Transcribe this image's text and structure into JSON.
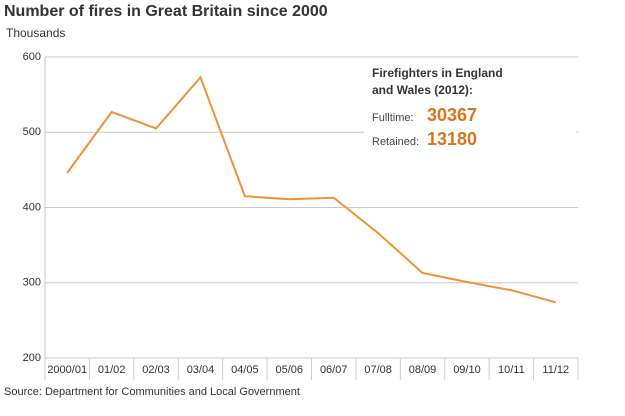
{
  "chart_data": {
    "type": "line",
    "title": "Number of fires in Great Britain since 2000",
    "subtitle": "Thousands",
    "categories": [
      "2000/01",
      "01/02",
      "02/03",
      "03/04",
      "04/05",
      "05/06",
      "06/07",
      "07/08",
      "08/09",
      "09/10",
      "10/11",
      "11/12"
    ],
    "values": [
      446,
      527,
      505,
      573,
      415,
      411,
      413,
      366,
      313,
      301,
      290,
      274
    ],
    "color": "#ef9235",
    "ylim": [
      200,
      600
    ],
    "yticks": [
      200,
      300,
      400,
      500,
      600
    ],
    "grid": true,
    "annotation": {
      "title": [
        "Firefighters in England",
        "and Wales (2012):"
      ],
      "rows": [
        {
          "label": "Fulltime:",
          "value": 30367
        },
        {
          "label": "Retained:",
          "value": 13180
        }
      ]
    },
    "source": "Source: Department for Communities and Local Government"
  }
}
